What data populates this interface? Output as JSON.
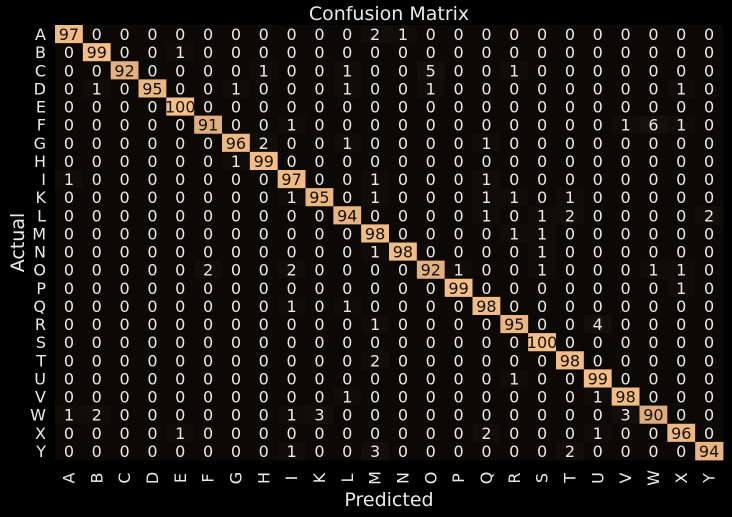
{
  "chart_data": {
    "type": "heatmap",
    "title": "Confusion Matrix",
    "xlabel": "Predicted",
    "ylabel": "Actual",
    "labels": [
      "A",
      "B",
      "C",
      "D",
      "E",
      "F",
      "G",
      "H",
      "I",
      "K",
      "L",
      "M",
      "N",
      "O",
      "P",
      "Q",
      "R",
      "S",
      "T",
      "U",
      "V",
      "W",
      "X",
      "Y"
    ],
    "matrix": [
      [
        97,
        0,
        0,
        0,
        0,
        0,
        0,
        0,
        0,
        0,
        0,
        2,
        1,
        0,
        0,
        0,
        0,
        0,
        0,
        0,
        0,
        0,
        0,
        0
      ],
      [
        0,
        99,
        0,
        0,
        1,
        0,
        0,
        0,
        0,
        0,
        0,
        0,
        0,
        0,
        0,
        0,
        0,
        0,
        0,
        0,
        0,
        0,
        0,
        0
      ],
      [
        0,
        0,
        92,
        0,
        0,
        0,
        0,
        1,
        0,
        0,
        1,
        0,
        0,
        5,
        0,
        0,
        1,
        0,
        0,
        0,
        0,
        0,
        0,
        0
      ],
      [
        0,
        1,
        0,
        95,
        0,
        0,
        1,
        0,
        0,
        0,
        1,
        0,
        0,
        1,
        0,
        0,
        0,
        0,
        0,
        0,
        0,
        0,
        1,
        0
      ],
      [
        0,
        0,
        0,
        0,
        100,
        0,
        0,
        0,
        0,
        0,
        0,
        0,
        0,
        0,
        0,
        0,
        0,
        0,
        0,
        0,
        0,
        0,
        0,
        0
      ],
      [
        0,
        0,
        0,
        0,
        0,
        91,
        0,
        0,
        1,
        0,
        0,
        0,
        0,
        0,
        0,
        0,
        0,
        0,
        0,
        0,
        1,
        6,
        1,
        0
      ],
      [
        0,
        0,
        0,
        0,
        0,
        0,
        96,
        2,
        0,
        0,
        1,
        0,
        0,
        0,
        0,
        1,
        0,
        0,
        0,
        0,
        0,
        0,
        0,
        0
      ],
      [
        0,
        0,
        0,
        0,
        0,
        0,
        1,
        99,
        0,
        0,
        0,
        0,
        0,
        0,
        0,
        0,
        0,
        0,
        0,
        0,
        0,
        0,
        0,
        0
      ],
      [
        1,
        0,
        0,
        0,
        0,
        0,
        0,
        0,
        97,
        0,
        0,
        1,
        0,
        0,
        0,
        1,
        0,
        0,
        0,
        0,
        0,
        0,
        0,
        0
      ],
      [
        0,
        0,
        0,
        0,
        0,
        0,
        0,
        0,
        1,
        95,
        0,
        1,
        0,
        0,
        0,
        1,
        1,
        0,
        1,
        0,
        0,
        0,
        0,
        0
      ],
      [
        0,
        0,
        0,
        0,
        0,
        0,
        0,
        0,
        0,
        0,
        94,
        0,
        0,
        0,
        0,
        1,
        0,
        1,
        2,
        0,
        0,
        0,
        0,
        2
      ],
      [
        0,
        0,
        0,
        0,
        0,
        0,
        0,
        0,
        0,
        0,
        0,
        98,
        0,
        0,
        0,
        0,
        1,
        1,
        0,
        0,
        0,
        0,
        0,
        0
      ],
      [
        0,
        0,
        0,
        0,
        0,
        0,
        0,
        0,
        0,
        0,
        0,
        1,
        98,
        0,
        0,
        0,
        0,
        1,
        0,
        0,
        0,
        0,
        0,
        0
      ],
      [
        0,
        0,
        0,
        0,
        0,
        2,
        0,
        0,
        2,
        0,
        0,
        0,
        0,
        92,
        1,
        0,
        0,
        1,
        0,
        0,
        0,
        1,
        1,
        0
      ],
      [
        0,
        0,
        0,
        0,
        0,
        0,
        0,
        0,
        0,
        0,
        0,
        0,
        0,
        0,
        99,
        0,
        0,
        0,
        0,
        0,
        0,
        0,
        1,
        0
      ],
      [
        0,
        0,
        0,
        0,
        0,
        0,
        0,
        0,
        1,
        0,
        1,
        0,
        0,
        0,
        0,
        98,
        0,
        0,
        0,
        0,
        0,
        0,
        0,
        0
      ],
      [
        0,
        0,
        0,
        0,
        0,
        0,
        0,
        0,
        0,
        0,
        0,
        1,
        0,
        0,
        0,
        0,
        95,
        0,
        0,
        4,
        0,
        0,
        0,
        0
      ],
      [
        0,
        0,
        0,
        0,
        0,
        0,
        0,
        0,
        0,
        0,
        0,
        0,
        0,
        0,
        0,
        0,
        0,
        100,
        0,
        0,
        0,
        0,
        0,
        0
      ],
      [
        0,
        0,
        0,
        0,
        0,
        0,
        0,
        0,
        0,
        0,
        0,
        2,
        0,
        0,
        0,
        0,
        0,
        0,
        98,
        0,
        0,
        0,
        0,
        0
      ],
      [
        0,
        0,
        0,
        0,
        0,
        0,
        0,
        0,
        0,
        0,
        0,
        0,
        0,
        0,
        0,
        0,
        1,
        0,
        0,
        99,
        0,
        0,
        0,
        0
      ],
      [
        0,
        0,
        0,
        0,
        0,
        0,
        0,
        0,
        0,
        0,
        1,
        0,
        0,
        0,
        0,
        0,
        0,
        0,
        0,
        1,
        98,
        0,
        0,
        0
      ],
      [
        1,
        2,
        0,
        0,
        0,
        0,
        0,
        0,
        1,
        3,
        0,
        0,
        0,
        0,
        0,
        0,
        0,
        0,
        0,
        0,
        3,
        90,
        0,
        0
      ],
      [
        0,
        0,
        0,
        0,
        1,
        0,
        0,
        0,
        0,
        0,
        0,
        0,
        0,
        0,
        0,
        2,
        0,
        0,
        0,
        1,
        0,
        0,
        96,
        0
      ],
      [
        0,
        0,
        0,
        0,
        0,
        0,
        0,
        0,
        1,
        0,
        0,
        3,
        0,
        0,
        0,
        0,
        0,
        0,
        2,
        0,
        0,
        0,
        0,
        94
      ]
    ],
    "vmin": 0,
    "vmax": 100,
    "colormap": {
      "low": "#000000",
      "high": "#f7c089"
    }
  }
}
